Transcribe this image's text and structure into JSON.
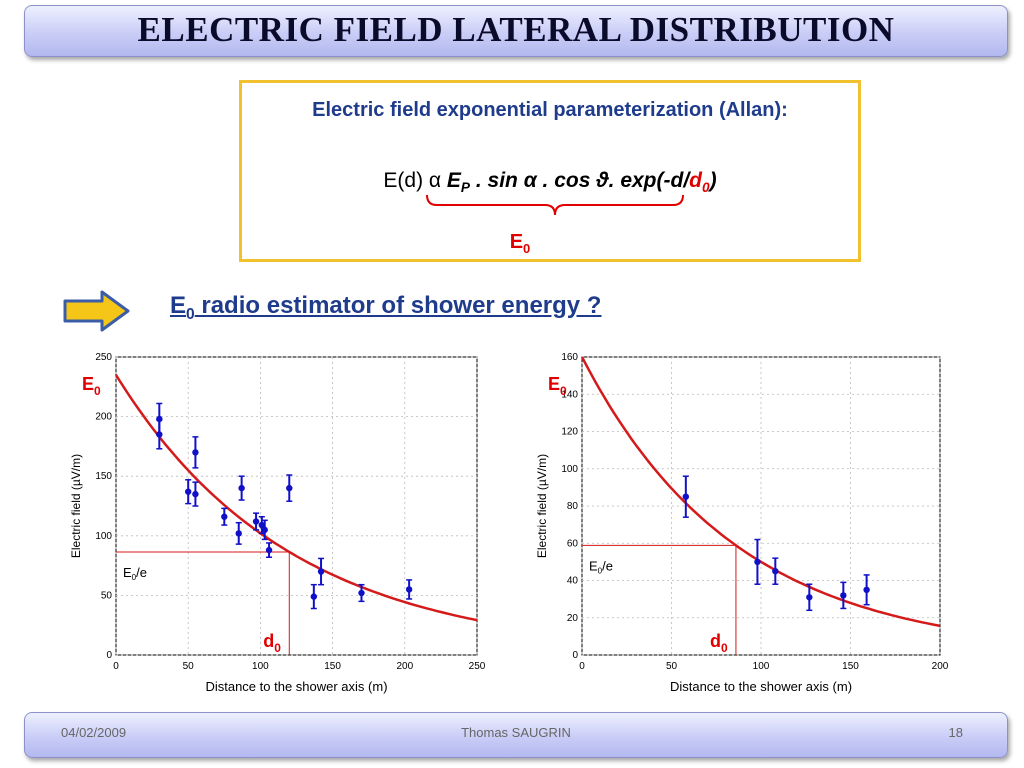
{
  "slide": {
    "title": "ELECTRIC FIELD LATERAL DISTRIBUTION",
    "formula_heading": "Electric field exponential parameterization (Allan):",
    "formula": {
      "prefix": "E(d) α ",
      "ep_base": "E",
      "ep_sub": "P",
      "middle": " . sin α . cos ϑ. exp(-d/",
      "d0_base": "d",
      "d0_sub": "0",
      "suffix": ")"
    },
    "brace_label_base": "E",
    "brace_label_sub": "0",
    "question_base": "E",
    "question_sub": "0",
    "question_text": " radio estimator of shower energy ?"
  },
  "colors": {
    "heading_blue": "#1f3c8c",
    "accent_red": "#e00000",
    "box_border": "#f2c12e",
    "arrow_fill": "#f5c518",
    "arrow_stroke": "#3b5da8",
    "data_blue": "#1010c8",
    "fit_red": "#d41a1a"
  },
  "chart_data": [
    {
      "type": "scatter",
      "xlabel": "Distance to the shower axis (m)",
      "ylabel": "Electric field (µV/m)",
      "xlim": [
        0,
        250
      ],
      "ylim": [
        0,
        250
      ],
      "xticks": [
        0,
        50,
        100,
        150,
        200,
        250
      ],
      "yticks": [
        0,
        50,
        100,
        150,
        200,
        250
      ],
      "grid": true,
      "points": [
        {
          "x": 30,
          "y": 198,
          "err": 13
        },
        {
          "x": 30,
          "y": 185,
          "err": 12
        },
        {
          "x": 50,
          "y": 137,
          "err": 10
        },
        {
          "x": 55,
          "y": 135,
          "err": 10
        },
        {
          "x": 55,
          "y": 170,
          "err": 13
        },
        {
          "x": 75,
          "y": 116,
          "err": 7
        },
        {
          "x": 85,
          "y": 102,
          "err": 9
        },
        {
          "x": 87,
          "y": 140,
          "err": 10
        },
        {
          "x": 97,
          "y": 112,
          "err": 7
        },
        {
          "x": 101,
          "y": 109,
          "err": 7
        },
        {
          "x": 103,
          "y": 105,
          "err": 8
        },
        {
          "x": 106,
          "y": 88,
          "err": 6
        },
        {
          "x": 120,
          "y": 140,
          "err": 11
        },
        {
          "x": 137,
          "y": 49,
          "err": 10
        },
        {
          "x": 142,
          "y": 70,
          "err": 11
        },
        {
          "x": 170,
          "y": 52,
          "err": 7
        },
        {
          "x": 203,
          "y": 55,
          "err": 8
        }
      ],
      "fit": {
        "E0": 235,
        "d0": 120
      },
      "E0_label": {
        "base": "E",
        "sub": "0"
      },
      "d0_label": {
        "base": "d",
        "sub": "0"
      },
      "e_over_e_label": {
        "base": "E",
        "sub": "0",
        "suffix": "/e"
      }
    },
    {
      "type": "scatter",
      "xlabel": "Distance to the shower axis (m)",
      "ylabel": "Electric field (µV/m)",
      "xlim": [
        0,
        200
      ],
      "ylim": [
        0,
        160
      ],
      "xticks": [
        0,
        50,
        100,
        150,
        200
      ],
      "yticks": [
        0,
        20,
        40,
        60,
        80,
        100,
        120,
        140,
        160
      ],
      "grid": true,
      "points": [
        {
          "x": 58,
          "y": 85,
          "err": 11
        },
        {
          "x": 98,
          "y": 50,
          "err": 12
        },
        {
          "x": 108,
          "y": 45,
          "err": 7
        },
        {
          "x": 127,
          "y": 31,
          "err": 7
        },
        {
          "x": 146,
          "y": 32,
          "err": 7
        },
        {
          "x": 159,
          "y": 35,
          "err": 8
        }
      ],
      "fit": {
        "E0": 160,
        "d0": 86
      },
      "E0_label": {
        "base": "E",
        "sub": "0"
      },
      "d0_label": {
        "base": "d",
        "sub": "0"
      },
      "e_over_e_label": {
        "base": "E",
        "sub": "0",
        "suffix": "/e"
      }
    }
  ],
  "footer": {
    "date": "04/02/2009",
    "author": "Thomas SAUGRIN",
    "page": "18"
  }
}
